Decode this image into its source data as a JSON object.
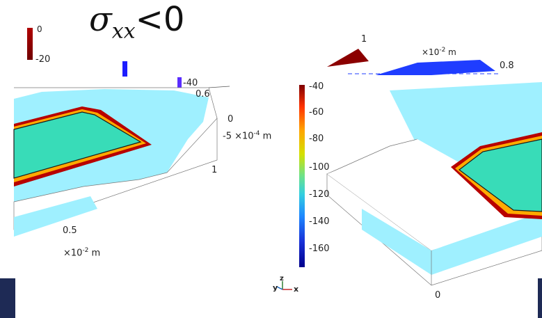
{
  "title": {
    "symbol": "σ",
    "subscript": "xx",
    "relation": "<0"
  },
  "top_left_legend": {
    "labels": [
      "0",
      "-20",
      "-40"
    ],
    "colors": [
      "#9b0000",
      "#1d1dff",
      "#5a2dff"
    ]
  },
  "left_view": {
    "axis_labels": {
      "top_tick": "0.6",
      "depth_zero": "0",
      "depth_unit": "-5 ×10",
      "depth_exp": "-4",
      "depth_m": " m",
      "y_tick": "1",
      "x_tick": "0.5",
      "x_unit": "×10",
      "x_exp": "-2",
      "x_m": " m"
    }
  },
  "top_right_view": {
    "tick_1": "1",
    "unit": "×10",
    "unit_exp": "-2",
    "unit_m": " m",
    "tick_08": "0.8"
  },
  "colorbar": {
    "labels": [
      "-40",
      "-60",
      "-80",
      "-100",
      "-120",
      "-140",
      "-160"
    ],
    "colors": [
      "#7f0000",
      "#ff3300",
      "#ffa500",
      "#d4e000",
      "#6de28a",
      "#33cfe0",
      "#1e88ff",
      "#1830d8",
      "#00008b"
    ]
  },
  "triad": {
    "y": "y",
    "z": "z",
    "x": "x"
  },
  "right_view": {
    "tick_0": "0"
  },
  "colors": {
    "cyan_field": "#9ff0ff",
    "plate_fill": "#38dcb8",
    "edge_red": "#a80000",
    "sidebar": "#1e2a55"
  }
}
